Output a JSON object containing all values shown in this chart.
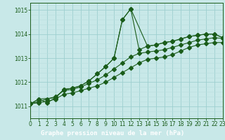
{
  "title": "Graphe pression niveau de la mer (hPa)",
  "bg_color": "#c8e8e8",
  "label_bg_color": "#2d6b2d",
  "label_text_color": "#ffffff",
  "grid_color_major": "#9ecfcf",
  "grid_color_minor": "#b8dede",
  "line_color": "#1a5c1a",
  "xlim": [
    0,
    23
  ],
  "ylim": [
    1010.5,
    1015.3
  ],
  "yticks": [
    1011,
    1012,
    1013,
    1014,
    1015
  ],
  "xticks": [
    0,
    1,
    2,
    3,
    4,
    5,
    6,
    7,
    8,
    9,
    10,
    11,
    12,
    13,
    14,
    15,
    16,
    17,
    18,
    19,
    20,
    21,
    22,
    23
  ],
  "series1_x": [
    0,
    1,
    2,
    3,
    4,
    5,
    6,
    7,
    8,
    9,
    10,
    11,
    12,
    13,
    14,
    15,
    16,
    17,
    18,
    19,
    20,
    21,
    22,
    23
  ],
  "series1_y": [
    1011.1,
    1011.3,
    1011.15,
    1011.35,
    1011.7,
    1011.75,
    1011.85,
    1012.05,
    1012.35,
    1012.65,
    1013.0,
    1014.6,
    1015.05,
    1013.35,
    1013.5,
    1013.55,
    1013.65,
    1013.7,
    1013.8,
    1013.9,
    1013.95,
    1014.0,
    1014.0,
    1013.85
  ],
  "series2_x": [
    0,
    1,
    3,
    4,
    5,
    6,
    7,
    8,
    9,
    10,
    11,
    12,
    14,
    15,
    16,
    17,
    18,
    19,
    20,
    21,
    22,
    23
  ],
  "series2_y": [
    1011.1,
    1011.3,
    1011.35,
    1011.7,
    1011.75,
    1011.85,
    1012.05,
    1012.35,
    1012.65,
    1013.0,
    1014.6,
    1015.05,
    1013.5,
    1013.55,
    1013.65,
    1013.7,
    1013.8,
    1013.9,
    1013.95,
    1014.0,
    1014.0,
    1013.85
  ],
  "series3_x": [
    0,
    1,
    2,
    3,
    4,
    5,
    6,
    7,
    8,
    9,
    10,
    11,
    12,
    13,
    14,
    15,
    16,
    17,
    18,
    19,
    20,
    21,
    22,
    23
  ],
  "series3_y": [
    1011.1,
    1011.2,
    1011.3,
    1011.4,
    1011.65,
    1011.7,
    1011.8,
    1011.95,
    1012.1,
    1012.3,
    1012.55,
    1012.8,
    1013.05,
    1013.2,
    1013.25,
    1013.3,
    1013.35,
    1013.45,
    1013.55,
    1013.65,
    1013.75,
    1013.8,
    1013.85,
    1013.82
  ],
  "series4_x": [
    0,
    1,
    2,
    3,
    4,
    5,
    6,
    7,
    8,
    9,
    10,
    11,
    12,
    13,
    14,
    15,
    16,
    17,
    18,
    19,
    20,
    21,
    22,
    23
  ],
  "series4_y": [
    1011.1,
    1011.15,
    1011.2,
    1011.3,
    1011.5,
    1011.55,
    1011.65,
    1011.75,
    1011.85,
    1012.0,
    1012.2,
    1012.4,
    1012.6,
    1012.8,
    1012.95,
    1013.0,
    1013.05,
    1013.15,
    1013.3,
    1013.45,
    1013.55,
    1013.6,
    1013.65,
    1013.65
  ]
}
